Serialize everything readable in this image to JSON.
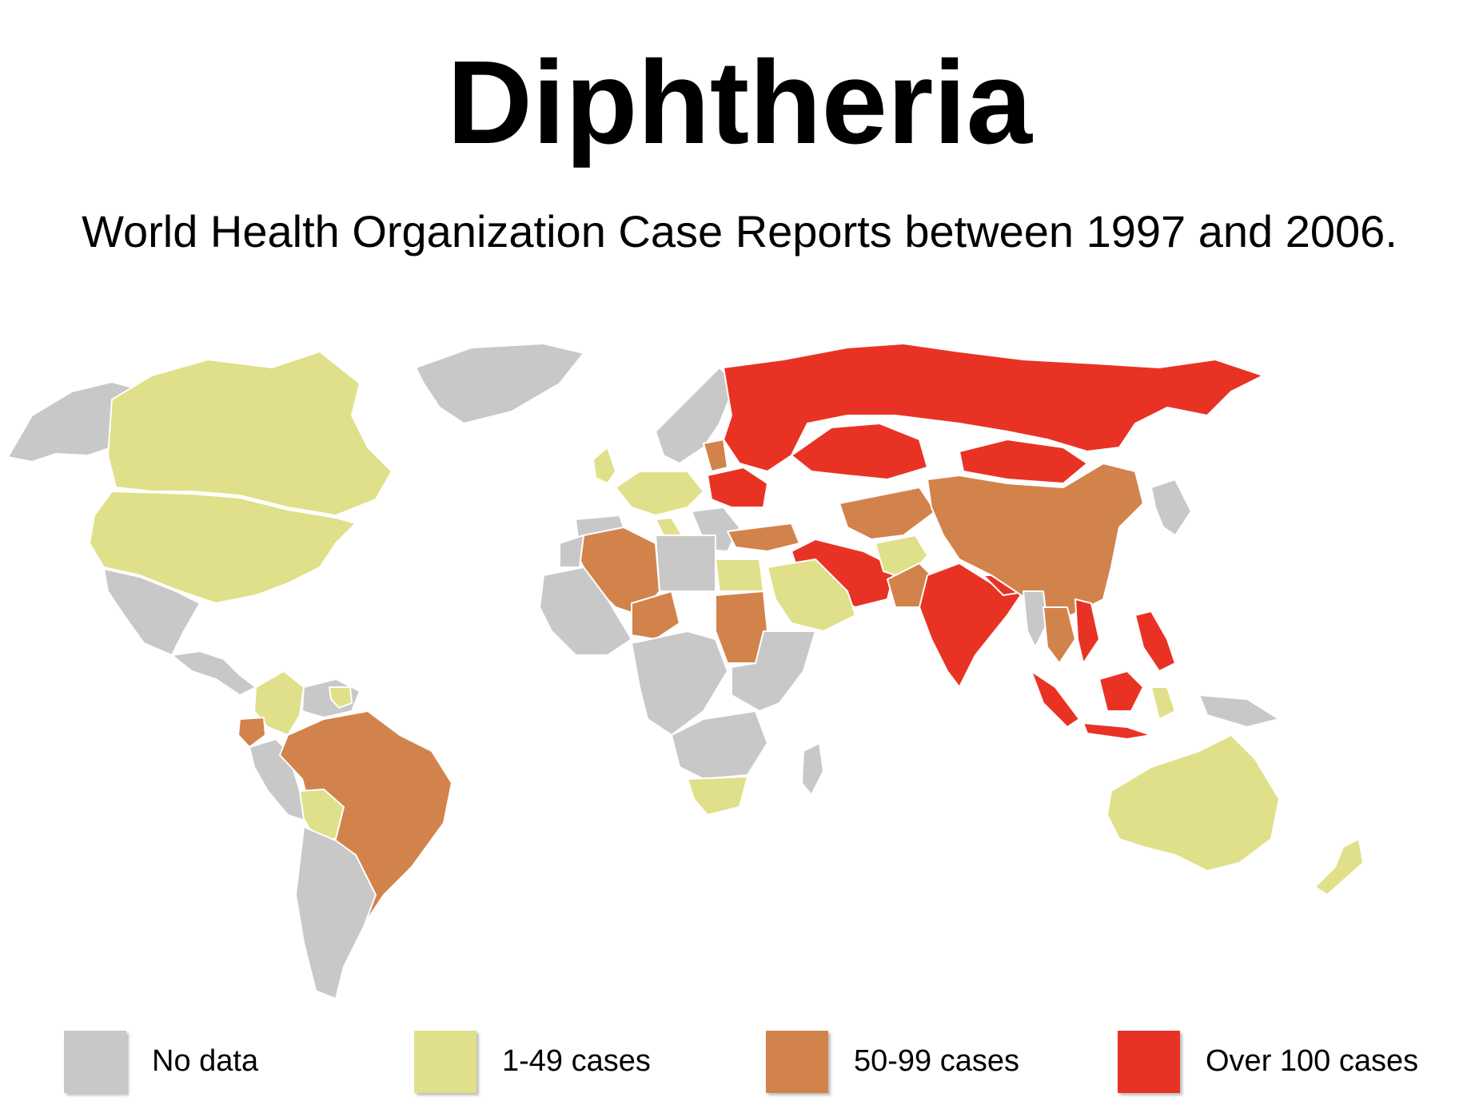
{
  "title": "Diphtheria",
  "subtitle": "World Health Organization Case Reports between 1997 and 2006.",
  "colors": {
    "no_data": "#c8c8c8",
    "low": "#e0e08a",
    "mid": "#d2834b",
    "high": "#e83324",
    "ocean": "#ffffff",
    "border": "#ffffff"
  },
  "legend": [
    {
      "label": "No data",
      "color": "#c8c8c8"
    },
    {
      "label": "1-49 cases",
      "color": "#e0e08a"
    },
    {
      "label": "50-99 cases",
      "color": "#d2834b"
    },
    {
      "label": "Over 100 cases",
      "color": "#e83324"
    }
  ],
  "regions": [
    {
      "name": "Alaska",
      "category": "no_data"
    },
    {
      "name": "Greenland",
      "category": "no_data"
    },
    {
      "name": "Canada",
      "category": "low"
    },
    {
      "name": "United States",
      "category": "low"
    },
    {
      "name": "Mexico",
      "category": "no_data"
    },
    {
      "name": "Central America",
      "category": "no_data"
    },
    {
      "name": "Colombia",
      "category": "low"
    },
    {
      "name": "Venezuela",
      "category": "no_data"
    },
    {
      "name": "Guyana",
      "category": "low"
    },
    {
      "name": "Ecuador",
      "category": "mid"
    },
    {
      "name": "Peru",
      "category": "no_data"
    },
    {
      "name": "Brazil",
      "category": "mid"
    },
    {
      "name": "Bolivia",
      "category": "low"
    },
    {
      "name": "Southern South America",
      "category": "no_data"
    },
    {
      "name": "United Kingdom",
      "category": "low"
    },
    {
      "name": "Western Europe",
      "category": "low"
    },
    {
      "name": "Italy",
      "category": "low"
    },
    {
      "name": "Scandinavia",
      "category": "no_data"
    },
    {
      "name": "Iberia",
      "category": "no_data"
    },
    {
      "name": "Balkans",
      "category": "no_data"
    },
    {
      "name": "Baltic States",
      "category": "mid"
    },
    {
      "name": "Ukraine and Belarus",
      "category": "high"
    },
    {
      "name": "Russia",
      "category": "high"
    },
    {
      "name": "Kazakhstan",
      "category": "high"
    },
    {
      "name": "Turkey",
      "category": "mid"
    },
    {
      "name": "Iran and Iraq",
      "category": "high"
    },
    {
      "name": "Central Asia",
      "category": "mid"
    },
    {
      "name": "Afghanistan",
      "category": "low"
    },
    {
      "name": "Pakistan",
      "category": "mid"
    },
    {
      "name": "India",
      "category": "high"
    },
    {
      "name": "Nepal",
      "category": "high"
    },
    {
      "name": "China",
      "category": "mid"
    },
    {
      "name": "Mongolia",
      "category": "high"
    },
    {
      "name": "Korea and Japan",
      "category": "no_data"
    },
    {
      "name": "Myanmar",
      "category": "no_data"
    },
    {
      "name": "Thailand and Laos",
      "category": "mid"
    },
    {
      "name": "Vietnam",
      "category": "high"
    },
    {
      "name": "Philippines",
      "category": "high"
    },
    {
      "name": "Sumatra",
      "category": "high"
    },
    {
      "name": "Java",
      "category": "high"
    },
    {
      "name": "Borneo",
      "category": "high"
    },
    {
      "name": "Sulawesi",
      "category": "low"
    },
    {
      "name": "New Guinea",
      "category": "no_data"
    },
    {
      "name": "Australia",
      "category": "low"
    },
    {
      "name": "New Zealand",
      "category": "low"
    },
    {
      "name": "Saudi Arabia",
      "category": "low"
    },
    {
      "name": "Egypt",
      "category": "low"
    },
    {
      "name": "Algeria",
      "category": "mid"
    },
    {
      "name": "Niger",
      "category": "mid"
    },
    {
      "name": "Sudan",
      "category": "mid"
    },
    {
      "name": "Morocco and Libya",
      "category": "no_data"
    },
    {
      "name": "West Africa",
      "category": "no_data"
    },
    {
      "name": "Central Africa",
      "category": "no_data"
    },
    {
      "name": "East Africa",
      "category": "no_data"
    },
    {
      "name": "Southern Africa",
      "category": "no_data"
    },
    {
      "name": "South Africa",
      "category": "low"
    },
    {
      "name": "Madagascar",
      "category": "no_data"
    }
  ]
}
